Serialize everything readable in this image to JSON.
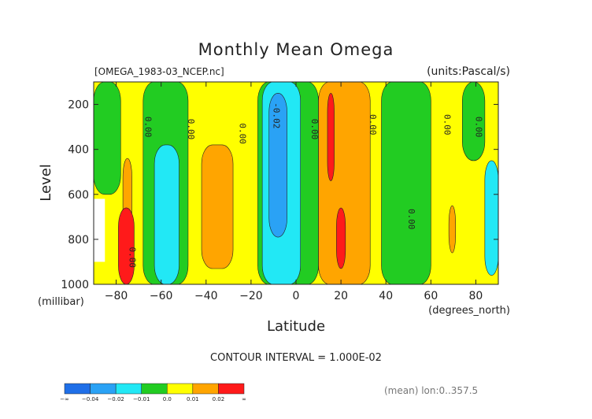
{
  "chart_data": {
    "type": "heatmap",
    "title": "Monthly Mean Omega",
    "file_label": "[OMEGA_1983-03_NCEP.nc]",
    "units_label": "(units:Pascal/s)",
    "xlabel": "Latitude",
    "x_units": "(degrees_north)",
    "ylabel": "Level",
    "y_units": "(millibar)",
    "contour_interval_text": "CONTOUR INTERVAL = 1.000E-02",
    "mean_text": "(mean) lon:0..357.5",
    "xlim": [
      -90,
      90
    ],
    "ylim": [
      1000,
      100
    ],
    "x_ticks": [
      -80,
      -60,
      -40,
      -20,
      0,
      20,
      40,
      60,
      80
    ],
    "y_ticks": [
      200,
      400,
      600,
      800,
      1000
    ],
    "colorbar": {
      "colors": [
        "#1f6fe8",
        "#2aa2f5",
        "#22e8f5",
        "#22cc22",
        "#ffff00",
        "#ffa500",
        "#ff1a1a"
      ],
      "labels": [
        "-∞",
        "-0.04",
        "-0.02",
        "-0.01",
        "0.0",
        "0.01",
        "0.02",
        "∞"
      ]
    },
    "contour_labels": [
      "0.00",
      "-0.02",
      "0.00",
      "0.00",
      "0.00",
      "0.00",
      "0.00",
      "0.00",
      "0.00",
      "0.00"
    ],
    "regions": [
      {
        "level": "yellow",
        "lat": [
          -90,
          90
        ],
        "p": [
          100,
          1000
        ]
      },
      {
        "level": "green",
        "lat": [
          -90,
          -78
        ],
        "p": [
          100,
          600
        ]
      },
      {
        "level": "green",
        "lat": [
          -68,
          -48
        ],
        "p": [
          100,
          1000
        ]
      },
      {
        "level": "cyan",
        "lat": [
          -63,
          -52
        ],
        "p": [
          380,
          1000
        ]
      },
      {
        "level": "orange",
        "lat": [
          -42,
          -28
        ],
        "p": [
          380,
          930
        ]
      },
      {
        "level": "green",
        "lat": [
          -17,
          10
        ],
        "p": [
          100,
          1000
        ]
      },
      {
        "level": "cyan",
        "lat": [
          -15,
          2
        ],
        "p": [
          100,
          1000
        ]
      },
      {
        "level": "blue",
        "lat": [
          -12,
          -4
        ],
        "p": [
          150,
          790
        ]
      },
      {
        "level": "orange",
        "lat": [
          10,
          33
        ],
        "p": [
          100,
          1000
        ]
      },
      {
        "level": "red",
        "lat": [
          14,
          17
        ],
        "p": [
          150,
          540
        ]
      },
      {
        "level": "red",
        "lat": [
          18,
          22
        ],
        "p": [
          660,
          930
        ]
      },
      {
        "level": "green",
        "lat": [
          38,
          60
        ],
        "p": [
          100,
          1000
        ]
      },
      {
        "level": "green",
        "lat": [
          74,
          84
        ],
        "p": [
          100,
          450
        ]
      },
      {
        "level": "cyan",
        "lat": [
          84,
          90
        ],
        "p": [
          450,
          960
        ]
      },
      {
        "level": "orange",
        "lat": [
          -77,
          -73
        ],
        "p": [
          440,
          760
        ]
      },
      {
        "level": "red",
        "lat": [
          -79,
          -72
        ],
        "p": [
          660,
          1000
        ]
      },
      {
        "level": "orange",
        "lat": [
          68,
          71
        ],
        "p": [
          650,
          860
        ]
      }
    ],
    "missing_region": {
      "lat": [
        -90,
        -85
      ],
      "p": [
        620,
        900
      ]
    }
  }
}
